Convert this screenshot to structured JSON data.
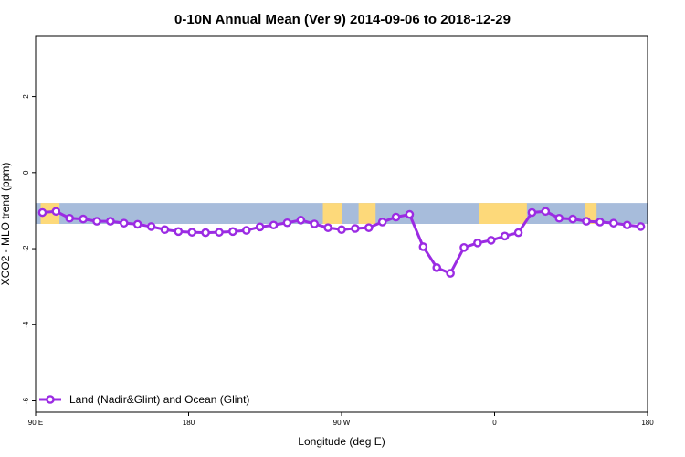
{
  "chart_data": {
    "type": "line",
    "title": "0-10N Annual Mean (Ver 9)   2014-09-06 to 2018-12-29",
    "xlabel": "Longitude (deg E)",
    "ylabel": "XCO2 - MLO trend (ppm)",
    "xlim": [
      90,
      450
    ],
    "ylim": [
      -6.3,
      3.6
    ],
    "x_ticks": [
      {
        "value": 90,
        "label": "90 E"
      },
      {
        "value": 180,
        "label": "180"
      },
      {
        "value": 270,
        "label": "90 W"
      },
      {
        "value": 360,
        "label": "0"
      },
      {
        "value": 450,
        "label": "180"
      }
    ],
    "y_ticks": [
      {
        "value": -6,
        "label": "-6"
      },
      {
        "value": -4,
        "label": "-4"
      },
      {
        "value": -2,
        "label": "-2"
      },
      {
        "value": 0,
        "label": "0"
      },
      {
        "value": 2,
        "label": "2"
      }
    ],
    "background_map": {
      "description": "land/ocean strip for 0-10N",
      "y_range": [
        -1.35,
        -0.8
      ],
      "ocean_color": "#a7bcdb",
      "land_color": "#fdd97a",
      "land_segments": [
        [
          93,
          104
        ],
        [
          259,
          270
        ],
        [
          280,
          290
        ],
        [
          351,
          379
        ],
        [
          413,
          420
        ]
      ]
    },
    "series": [
      {
        "name": "Land (Nadir&Glint) and Ocean (Glint)",
        "color": "#9b2be3",
        "x": [
          94,
          102,
          110,
          118,
          126,
          134,
          142,
          150,
          158,
          166,
          174,
          182,
          190,
          198,
          206,
          214,
          222,
          230,
          238,
          246,
          254,
          262,
          270,
          278,
          286,
          294,
          302,
          310,
          318,
          326,
          334,
          342,
          350,
          358,
          366,
          374,
          382,
          390,
          398,
          406,
          414,
          422,
          430,
          438,
          446
        ],
        "values": [
          -1.05,
          -1.02,
          -1.2,
          -1.22,
          -1.28,
          -1.28,
          -1.33,
          -1.36,
          -1.42,
          -1.5,
          -1.55,
          -1.57,
          -1.58,
          -1.57,
          -1.55,
          -1.52,
          -1.43,
          -1.38,
          -1.32,
          -1.25,
          -1.35,
          -1.45,
          -1.5,
          -1.47,
          -1.45,
          -1.3,
          -1.17,
          -1.1,
          -1.95,
          -2.5,
          -2.65,
          -1.97,
          -1.85,
          -1.78,
          -1.67,
          -1.58,
          -1.05,
          -1.02,
          -1.2,
          -1.22,
          -1.28,
          -1.3,
          -1.33,
          -1.38,
          -1.42
        ]
      }
    ],
    "legend": {
      "position": "bottom-left",
      "entries": [
        "Land (Nadir&Glint) and Ocean (Glint)"
      ]
    },
    "grid": false
  }
}
